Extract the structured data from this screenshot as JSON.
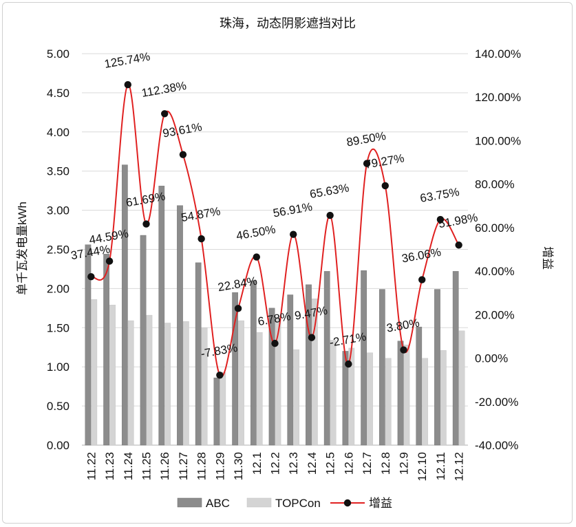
{
  "chart_data": {
    "type": "bar",
    "title": "珠海，动态阴影遮挡对比",
    "categories": [
      "11.22",
      "11.23",
      "11.24",
      "11.25",
      "11.26",
      "11.27",
      "11.28",
      "11.29",
      "11.30",
      "12.1",
      "12.2",
      "12.3",
      "12.4",
      "12.5",
      "12.6",
      "12.7",
      "12.8",
      "12.9",
      "12.10",
      "12.11",
      "12.12"
    ],
    "series": [
      {
        "name": "ABC",
        "axis": "left",
        "type": "bar",
        "color": "#8c8c8c",
        "values": [
          2.56,
          2.44,
          3.58,
          2.68,
          3.31,
          3.06,
          2.33,
          0.86,
          1.95,
          2.1,
          1.75,
          1.92,
          2.05,
          2.22,
          1.2,
          2.23,
          1.99,
          1.33,
          1.51,
          1.99,
          2.22
        ]
      },
      {
        "name": "TOPCon",
        "axis": "left",
        "type": "bar",
        "color": "#d4d4d4",
        "values": [
          1.86,
          1.79,
          1.59,
          1.66,
          1.56,
          1.58,
          1.5,
          0.93,
          1.59,
          1.44,
          1.64,
          1.22,
          1.87,
          1.34,
          1.24,
          1.18,
          1.11,
          1.28,
          1.11,
          1.21,
          1.46
        ]
      },
      {
        "name": "增益",
        "axis": "right",
        "type": "line",
        "color": "#e02020",
        "values": [
          37.44,
          44.59,
          125.74,
          61.69,
          112.38,
          93.61,
          54.87,
          -7.83,
          22.84,
          46.5,
          6.78,
          56.91,
          9.47,
          65.63,
          -2.71,
          89.5,
          79.27,
          3.8,
          36.06,
          63.75,
          51.98
        ],
        "labels": [
          "37.44%",
          "44.59%",
          "125.74%",
          "61.69%",
          "112.38%",
          "93.61%",
          "54.87%",
          "-7.83%",
          "22.84%",
          "46.50%",
          "6.78%",
          "56.91%",
          "9.47%",
          "65.63%",
          "-2.71%",
          "89.50%",
          "79.27%",
          "3.80%",
          "36.06%",
          "63.75%",
          "51.98%"
        ]
      }
    ],
    "ylabel": "单千瓦发电量kWh",
    "ylabel_right": "增益",
    "ylim": [
      0,
      5
    ],
    "yticks": [
      "0.00",
      "0.50",
      "1.00",
      "1.50",
      "2.00",
      "2.50",
      "3.00",
      "3.50",
      "4.00",
      "4.50",
      "5.00"
    ],
    "ylim_right": [
      -40,
      140
    ],
    "yticks_right": [
      "-40.00%",
      "-20.00%",
      "0.00%",
      "20.00%",
      "40.00%",
      "60.00%",
      "80.00%",
      "100.00%",
      "120.00%",
      "140.00%"
    ],
    "grid": true,
    "legend": "bottom"
  }
}
